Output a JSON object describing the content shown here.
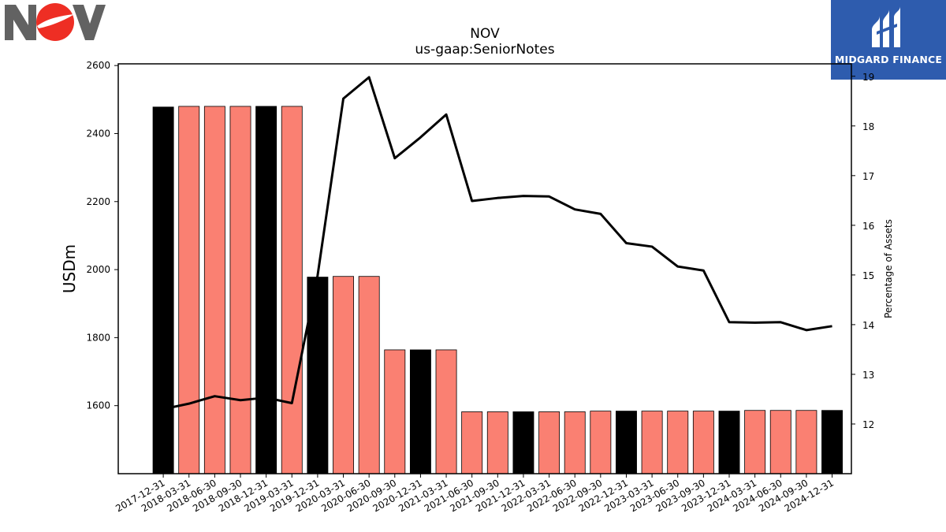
{
  "logos": {
    "left": {
      "text": "NOV"
    },
    "right": {
      "text": "MIDGARD FINANCE",
      "color": "#2e5cae"
    }
  },
  "chart_data": {
    "type": "bar",
    "title": "NOV",
    "subtitle": "us-gaap:SeniorNotes",
    "ylabel": "USDm",
    "y2label": "Percentage of Assets",
    "ylim": [
      1400,
      2605
    ],
    "y2lim": [
      11.0,
      19.25
    ],
    "yticks": [
      1600,
      1800,
      2000,
      2200,
      2400,
      2600
    ],
    "y2ticks": [
      12,
      13,
      14,
      15,
      16,
      17,
      18,
      19
    ],
    "colors": {
      "year_end": "#000000",
      "quarter": "#fa8072",
      "line": "#000000"
    },
    "categories": [
      "2017-12-31",
      "2018-03-31",
      "2018-06-30",
      "2018-09-30",
      "2018-12-31",
      "2019-03-31",
      "2019-12-31",
      "2020-03-31",
      "2020-06-30",
      "2020-09-30",
      "2020-12-31",
      "2021-03-31",
      "2021-06-30",
      "2021-09-30",
      "2021-12-31",
      "2022-03-31",
      "2022-06-30",
      "2022-09-30",
      "2022-12-31",
      "2023-03-31",
      "2023-06-30",
      "2023-09-30",
      "2023-12-31",
      "2024-03-31",
      "2024-06-30",
      "2024-09-30",
      "2024-12-31"
    ],
    "series": [
      {
        "kind": "bar",
        "values": [
          2478,
          2480,
          2480,
          2480,
          2480,
          2480,
          1978,
          1980,
          1980,
          1764,
          1764,
          1764,
          1582,
          1582,
          1582,
          1582,
          1582,
          1584,
          1584,
          1584,
          1584,
          1584,
          1584,
          1586,
          1586,
          1586,
          1586
        ],
        "year_end": [
          true,
          false,
          false,
          false,
          true,
          false,
          true,
          false,
          false,
          false,
          true,
          false,
          false,
          false,
          true,
          false,
          false,
          false,
          true,
          false,
          false,
          false,
          true,
          false,
          false,
          false,
          true
        ]
      },
      {
        "kind": "line",
        "axis": "right",
        "values": [
          12.3,
          12.41,
          12.56,
          12.48,
          12.53,
          12.42,
          14.99,
          18.55,
          18.98,
          17.35,
          17.77,
          18.23,
          16.49,
          16.55,
          16.59,
          16.58,
          16.32,
          16.23,
          15.64,
          15.57,
          15.17,
          15.09,
          14.05,
          14.04,
          14.05,
          13.89,
          13.97
        ]
      }
    ]
  }
}
